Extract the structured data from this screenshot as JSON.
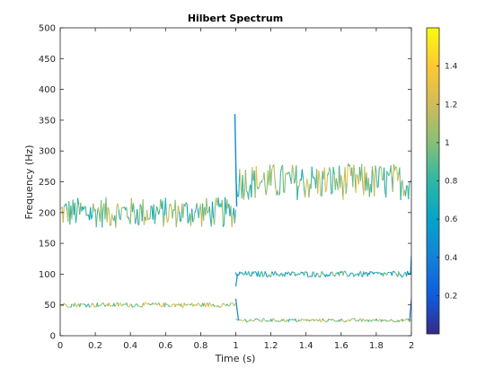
{
  "chart_data": {
    "type": "line",
    "title": "Hilbert Spectrum",
    "xlabel": "Time (s)",
    "ylabel": "Frequency (Hz)",
    "xlim": [
      0,
      2
    ],
    "ylim": [
      0,
      500
    ],
    "xticks": [
      "0",
      "0.2",
      "0.4",
      "0.6",
      "0.8",
      "1",
      "1.2",
      "1.4",
      "1.6",
      "1.8",
      "2"
    ],
    "yticks": [
      "0",
      "50",
      "100",
      "150",
      "200",
      "250",
      "300",
      "350",
      "400",
      "450",
      "500"
    ],
    "grid": false,
    "colorbar": {
      "range": [
        0,
        1.6
      ],
      "ticks": [
        "0.2",
        "0.4",
        "0.6",
        "0.8",
        "1",
        "1.2",
        "1.4"
      ],
      "colormap": "parula"
    },
    "series": [
      {
        "segments": [
          {
            "t": [
              0,
              1
            ],
            "freq": 200,
            "spread": 25,
            "amp": 0.9
          },
          {
            "t": [
              1,
              2
            ],
            "freq": 250,
            "spread": 30,
            "amp": 1.0
          }
        ]
      },
      {
        "segments": [
          {
            "t": [
              0,
              1
            ],
            "freq": 50,
            "spread": 4,
            "amp": 1.1
          },
          {
            "t": [
              1,
              2
            ],
            "freq": 100,
            "spread": 5,
            "amp": 0.75
          }
        ]
      },
      {
        "segments": [
          {
            "t": [
              1,
              2
            ],
            "freq": 25,
            "spread": 3,
            "amp": 1.05
          }
        ]
      }
    ],
    "transient": {
      "t": 1,
      "peak": 360
    }
  }
}
